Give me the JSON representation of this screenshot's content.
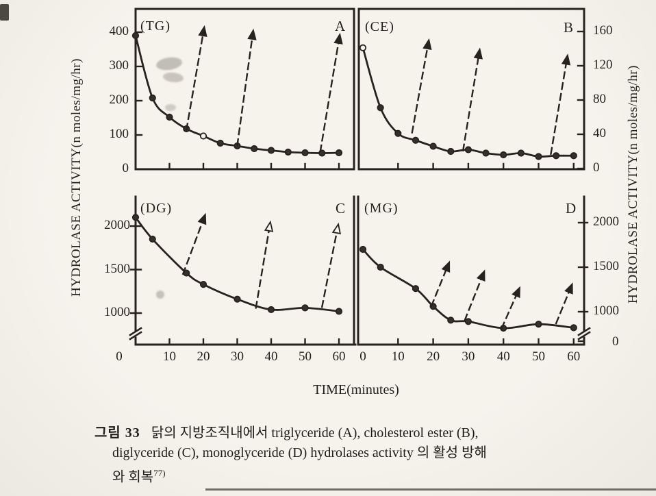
{
  "page": {
    "background": "#f5f3ec",
    "ink": "#27221d",
    "paper": "#f5f3ec"
  },
  "figure": {
    "number": "33",
    "left_axis_title": "HYDROLASE  ACTIVITY(n moles/mg/hr)",
    "right_axis_title": "HYDROLASE  ACTIVITY(n moles/mg/hr)",
    "x_axis_label": "TIME(minutes)"
  },
  "caption": {
    "label": "그림 33",
    "line1": "닭의 지방조직내에서 triglyceride (A), cholesterol ester (B),",
    "line2": "diglyceride (C), monoglyceride (D) hydrolases activity 의 활성 방해",
    "line3": "와 회복",
    "ref": "77)"
  },
  "chart_data": [
    {
      "panel": "A",
      "tag": "(TG)",
      "substrate": "triglyceride",
      "type": "line",
      "x_unit": "minutes",
      "y_unit": "n moles/mg/hr",
      "y_axis_side": "left",
      "axis_break": false,
      "xlim": [
        0,
        65
      ],
      "x_ticks": [
        0,
        10,
        20,
        30,
        40,
        50,
        60
      ],
      "ylim": [
        0,
        470
      ],
      "y_ticks": [
        0,
        100,
        200,
        300,
        400
      ],
      "series": [
        {
          "name": "hydrolase activity decay",
          "marker": "circle",
          "line": "solid",
          "x": [
            0,
            5,
            10,
            15,
            20,
            25,
            30,
            35,
            40,
            45,
            50,
            55,
            60
          ],
          "y": [
            390,
            208,
            152,
            118,
            97,
            76,
            68,
            60,
            55,
            50,
            48,
            47,
            48
          ],
          "open_marker_indices": [
            4
          ]
        }
      ],
      "recovery_arrows": [
        {
          "from": [
            15,
            115
          ],
          "to": [
            20,
            400
          ],
          "open": false
        },
        {
          "from": [
            30,
            70
          ],
          "to": [
            34.5,
            390
          ],
          "open": false
        },
        {
          "from": [
            54.5,
            52
          ],
          "to": [
            60,
            378
          ],
          "open": false
        }
      ]
    },
    {
      "panel": "B",
      "tag": "(CE)",
      "substrate": "cholesterol ester",
      "type": "line",
      "x_unit": "minutes",
      "y_unit": "n moles/mg/hr",
      "y_axis_side": "right",
      "axis_break": false,
      "xlim": [
        0,
        63
      ],
      "x_ticks": [
        0,
        10,
        20,
        30,
        40,
        50,
        60
      ],
      "ylim": [
        0,
        186
      ],
      "y_ticks": [
        0,
        40,
        80,
        120,
        160
      ],
      "series": [
        {
          "name": "hydrolase activity decay",
          "marker": "circle",
          "line": "solid",
          "x": [
            0,
            5,
            10,
            15,
            20,
            25,
            30,
            35,
            40,
            45,
            50,
            55,
            60
          ],
          "y": [
            141,
            71,
            41,
            33,
            26,
            20,
            22,
            18,
            16,
            18,
            14,
            15,
            15
          ],
          "open_marker_indices": [
            0
          ]
        }
      ],
      "recovery_arrows": [
        {
          "from": [
            14,
            42
          ],
          "to": [
            18.5,
            144
          ],
          "open": false
        },
        {
          "from": [
            28.5,
            21
          ],
          "to": [
            33,
            133
          ],
          "open": false
        },
        {
          "from": [
            53.5,
            17
          ],
          "to": [
            58,
            126
          ],
          "open": false
        }
      ]
    },
    {
      "panel": "C",
      "tag": "(DG)",
      "substrate": "diglyceride",
      "type": "line",
      "x_unit": "minutes",
      "y_unit": "n moles/mg/hr",
      "y_axis_side": "left",
      "axis_break": true,
      "xlim": [
        0,
        65
      ],
      "x_ticks": [
        0,
        10,
        20,
        30,
        40,
        50,
        60
      ],
      "ylim": [
        900,
        2340
      ],
      "y_ticks": [
        1000,
        1500,
        2000
      ],
      "series": [
        {
          "name": "hydrolase activity decay",
          "marker": "circle",
          "line": "solid",
          "x": [
            0,
            5,
            15,
            20,
            30,
            40,
            50,
            60
          ],
          "y": [
            2100,
            1850,
            1460,
            1330,
            1160,
            1040,
            1060,
            1020
          ],
          "open_marker_indices": []
        }
      ],
      "recovery_arrows": [
        {
          "from": [
            14,
            1450
          ],
          "to": [
            20,
            2075
          ],
          "open": false
        },
        {
          "from": [
            35.5,
            1060
          ],
          "to": [
            39.5,
            1985
          ],
          "open": true
        },
        {
          "from": [
            55,
            1070
          ],
          "to": [
            59.5,
            1960
          ],
          "open": true
        }
      ]
    },
    {
      "panel": "D",
      "tag": "(MG)",
      "substrate": "monoglyceride",
      "type": "line",
      "x_unit": "minutes",
      "y_unit": "n moles/mg/hr",
      "y_axis_side": "right",
      "axis_break": true,
      "xlim": [
        0,
        63
      ],
      "x_ticks": [
        0,
        10,
        20,
        30,
        40,
        50,
        60
      ],
      "ylim": [
        700,
        2340
      ],
      "y_ticks": [
        0,
        1000,
        1500,
        2000
      ],
      "series": [
        {
          "name": "hydrolase activity decay",
          "marker": "circle",
          "line": "solid",
          "x": [
            0,
            5,
            15,
            20,
            25,
            30,
            40,
            50,
            60
          ],
          "y": [
            1700,
            1500,
            1260,
            1060,
            905,
            890,
            815,
            860,
            820
          ],
          "open_marker_indices": []
        }
      ],
      "recovery_arrows": [
        {
          "from": [
            19.5,
            1065
          ],
          "to": [
            24,
            1500
          ],
          "open": false
        },
        {
          "from": [
            29,
            905
          ],
          "to": [
            34,
            1400
          ],
          "open": false
        },
        {
          "from": [
            39.5,
            815
          ],
          "to": [
            44,
            1215
          ],
          "open": false
        },
        {
          "from": [
            55,
            870
          ],
          "to": [
            59,
            1255
          ],
          "open": false
        }
      ]
    }
  ]
}
